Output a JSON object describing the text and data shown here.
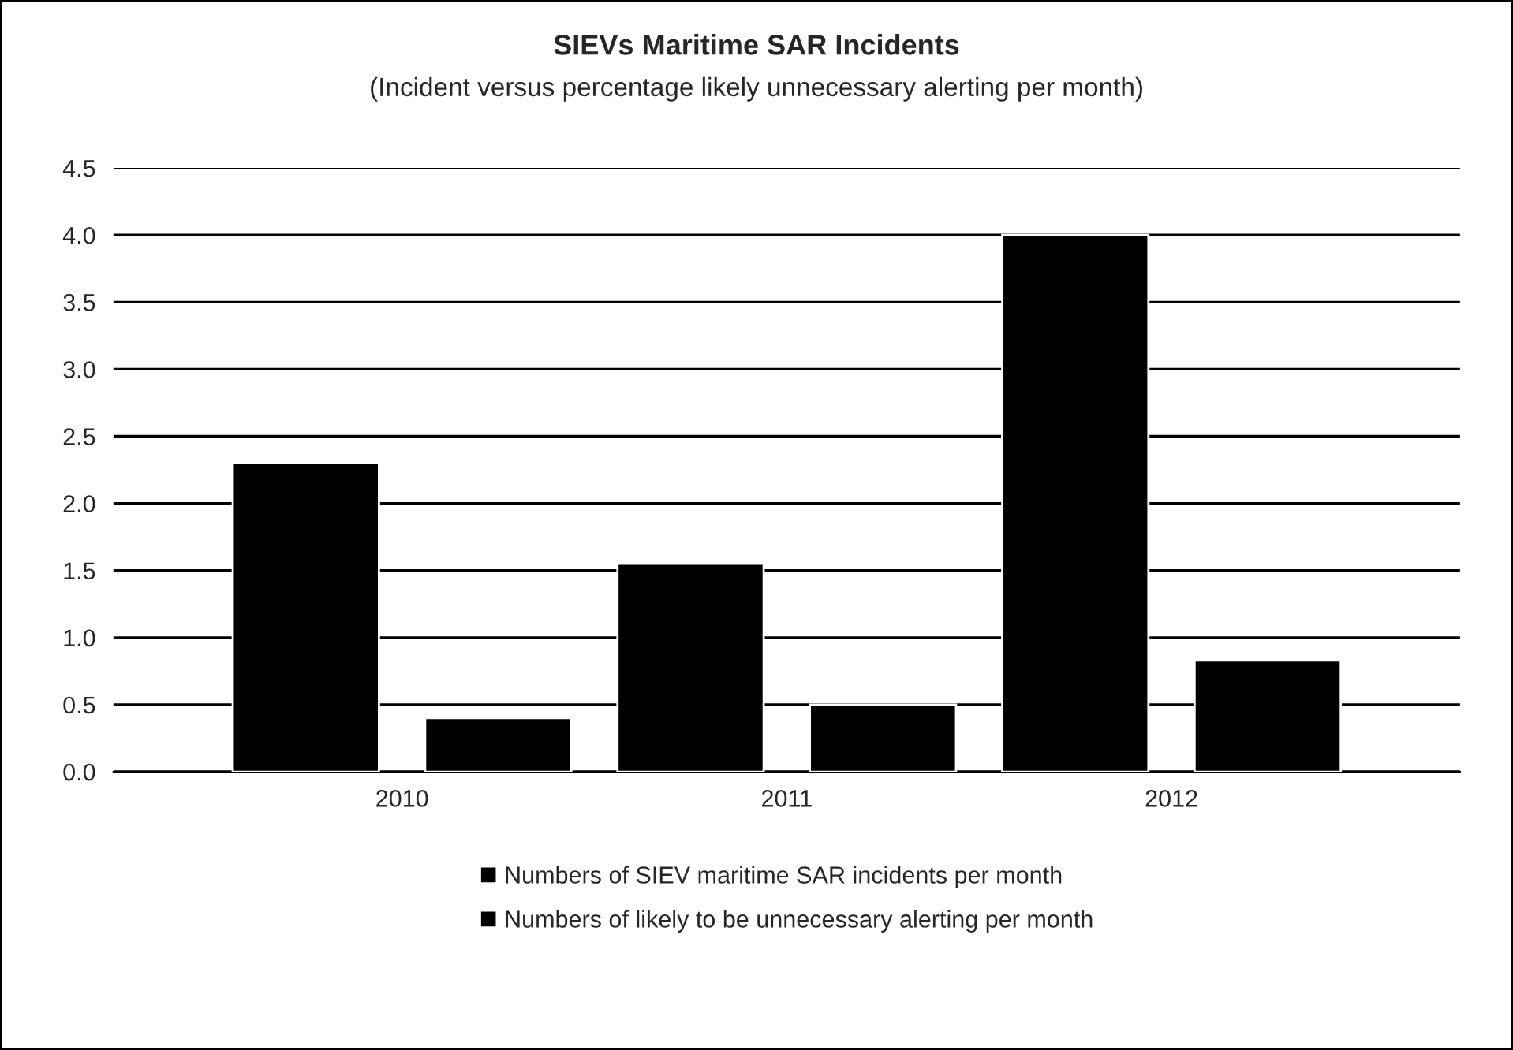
{
  "chart_data": {
    "type": "bar",
    "title": "SIEVs Maritime SAR Incidents",
    "subtitle": "(Incident versus percentage likely unnecessary alerting per month)",
    "categories": [
      "2010",
      "2011",
      "2012"
    ],
    "series": [
      {
        "name": "Numbers of SIEV maritime SAR incidents per month",
        "color": "#000000",
        "values": [
          2.3,
          1.55,
          4.0
        ]
      },
      {
        "name": "Numbers of likely to be unnecessary alerting per month",
        "color": "#000000",
        "values": [
          0.4,
          0.5,
          0.83
        ]
      }
    ],
    "ylim": [
      0,
      4.5
    ],
    "yticks": [
      {
        "value": 0,
        "label": "0.0"
      },
      0.5,
      {
        "value": 1,
        "label": "1.0"
      },
      1.5,
      {
        "value": 2,
        "label": "2.0"
      },
      2.5,
      {
        "value": 3,
        "label": "3.0"
      },
      3.5,
      {
        "value": 4,
        "label": "4.0"
      },
      4.5
    ],
    "grid": "y",
    "legend": "bottom"
  }
}
